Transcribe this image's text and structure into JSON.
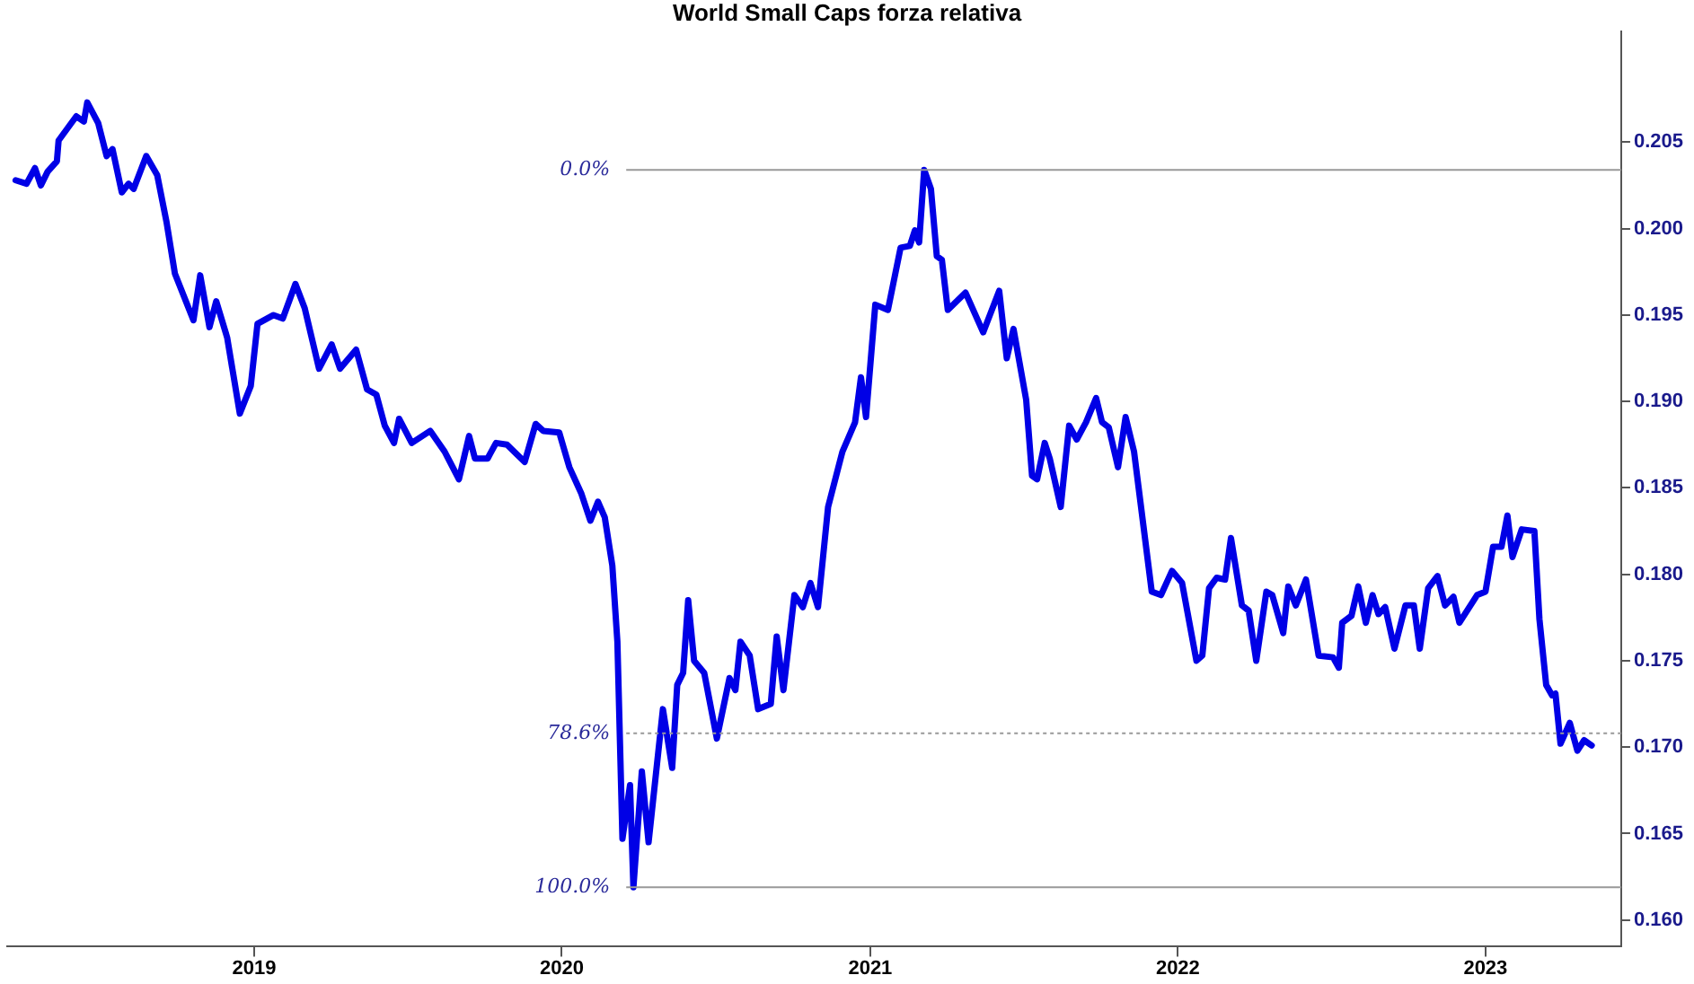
{
  "chart_data": {
    "type": "line",
    "title": "World Small Caps forza relativa",
    "x": [
      "2018-03-24",
      "2018-04-06",
      "2018-04-16",
      "2018-04-23",
      "2018-05-01",
      "2018-05-12",
      "2018-05-14",
      "2018-06-04",
      "2018-06-13",
      "2018-06-17",
      "2018-06-30",
      "2018-07-10",
      "2018-07-17",
      "2018-07-28",
      "2018-08-05",
      "2018-08-11",
      "2018-08-26",
      "2018-09-08",
      "2018-09-19",
      "2018-09-29",
      "2018-10-21",
      "2018-10-29",
      "2018-11-09",
      "2018-11-17",
      "2018-11-30",
      "2018-12-15",
      "2018-12-28",
      "2019-01-05",
      "2019-01-24",
      "2019-02-04",
      "2019-02-19",
      "2019-03-02",
      "2019-03-19",
      "2019-04-03",
      "2019-04-13",
      "2019-05-02",
      "2019-05-15",
      "2019-05-26",
      "2019-06-05",
      "2019-06-16",
      "2019-06-22",
      "2019-07-07",
      "2019-07-29",
      "2019-08-15",
      "2019-09-01",
      "2019-09-13",
      "2019-09-20",
      "2019-10-05",
      "2019-10-15",
      "2019-10-28",
      "2019-11-18",
      "2019-12-01",
      "2019-12-10",
      "2019-12-29",
      "2020-01-10",
      "2020-01-24",
      "2020-02-04",
      "2020-02-13",
      "2020-02-21",
      "2020-03-01",
      "2020-03-07",
      "2020-03-13",
      "2020-03-22",
      "2020-03-26",
      "2020-04-05",
      "2020-04-13",
      "2020-04-30",
      "2020-05-11",
      "2020-05-17",
      "2020-05-24",
      "2020-05-30",
      "2020-06-06",
      "2020-06-18",
      "2020-07-03",
      "2020-07-18",
      "2020-07-25",
      "2020-07-31",
      "2020-08-11",
      "2020-08-21",
      "2020-09-05",
      "2020-09-12",
      "2020-09-20",
      "2020-10-03",
      "2020-10-13",
      "2020-10-22",
      "2020-10-31",
      "2020-11-12",
      "2020-11-29",
      "2020-12-14",
      "2020-12-21",
      "2020-12-27",
      "2021-01-07",
      "2021-01-22",
      "2021-02-06",
      "2021-02-17",
      "2021-02-23",
      "2021-02-28",
      "2021-03-06",
      "2021-03-14",
      "2021-03-21",
      "2021-03-27",
      "2021-04-03",
      "2021-04-24",
      "2021-05-15",
      "2021-06-03",
      "2021-06-12",
      "2021-06-20",
      "2021-07-05",
      "2021-07-12",
      "2021-07-18",
      "2021-07-27",
      "2021-08-02",
      "2021-08-15",
      "2021-08-25",
      "2021-09-03",
      "2021-09-14",
      "2021-09-26",
      "2021-10-03",
      "2021-10-11",
      "2021-10-22",
      "2021-10-31",
      "2021-11-10",
      "2021-12-01",
      "2021-12-12",
      "2021-12-25",
      "2022-01-06",
      "2022-01-23",
      "2022-01-30",
      "2022-02-07",
      "2022-02-16",
      "2022-02-26",
      "2022-03-05",
      "2022-03-18",
      "2022-03-26",
      "2022-04-04",
      "2022-04-16",
      "2022-04-23",
      "2022-05-06",
      "2022-05-12",
      "2022-05-21",
      "2022-06-02",
      "2022-06-17",
      "2022-07-04",
      "2022-07-11",
      "2022-07-15",
      "2022-07-26",
      "2022-08-03",
      "2022-08-12",
      "2022-08-20",
      "2022-08-27",
      "2022-09-04",
      "2022-09-15",
      "2022-09-28",
      "2022-10-08",
      "2022-10-15",
      "2022-10-25",
      "2022-11-05",
      "2022-11-14",
      "2022-11-24",
      "2022-12-01",
      "2022-12-22",
      "2023-01-01",
      "2023-01-10",
      "2023-01-20",
      "2023-01-27",
      "2023-02-02",
      "2023-02-13",
      "2023-02-28",
      "2023-03-06",
      "2023-03-14",
      "2023-03-21",
      "2023-03-25",
      "2023-03-31",
      "2023-04-11",
      "2023-04-20",
      "2023-04-28",
      "2023-05-07"
    ],
    "series": [
      {
        "color": "#0000e6",
        "values": [
          0.2028,
          0.2026,
          0.2035,
          0.2025,
          0.2033,
          0.2039,
          0.2051,
          0.2065,
          0.2062,
          0.2073,
          0.2061,
          0.2042,
          0.2046,
          0.2021,
          0.2026,
          0.2023,
          0.2042,
          0.2031,
          0.2004,
          0.1974,
          0.1947,
          0.1973,
          0.1943,
          0.1958,
          0.1937,
          0.1893,
          0.1909,
          0.1945,
          0.195,
          0.1948,
          0.1968,
          0.1954,
          0.1919,
          0.1933,
          0.1919,
          0.193,
          0.1907,
          0.1904,
          0.1886,
          0.1876,
          0.189,
          0.1876,
          0.1883,
          0.1871,
          0.1855,
          0.188,
          0.1867,
          0.1867,
          0.1876,
          0.1875,
          0.1865,
          0.1887,
          0.1883,
          0.1882,
          0.1862,
          0.1847,
          0.1831,
          0.1842,
          0.1833,
          0.1805,
          0.1761,
          0.1647,
          0.1678,
          0.1619,
          0.1686,
          0.1645,
          0.1722,
          0.1688,
          0.1736,
          0.1743,
          0.1785,
          0.175,
          0.1743,
          0.1705,
          0.174,
          0.1733,
          0.1761,
          0.1753,
          0.1722,
          0.1725,
          0.1764,
          0.1733,
          0.1788,
          0.1781,
          0.1795,
          0.1781,
          0.1839,
          0.1871,
          0.1888,
          0.1914,
          0.1891,
          0.1956,
          0.1953,
          0.1989,
          0.199,
          0.1999,
          0.1992,
          0.2034,
          0.2023,
          0.1984,
          0.1982,
          0.1953,
          0.1963,
          0.194,
          0.1964,
          0.1925,
          0.1942,
          0.1901,
          0.1857,
          0.1855,
          0.1876,
          0.1867,
          0.1839,
          0.1886,
          0.1878,
          0.1888,
          0.1902,
          0.1888,
          0.1885,
          0.1862,
          0.1891,
          0.1871,
          0.179,
          0.1788,
          0.1802,
          0.1795,
          0.175,
          0.1753,
          0.1792,
          0.1798,
          0.1797,
          0.1821,
          0.1782,
          0.1779,
          0.175,
          0.179,
          0.1788,
          0.1766,
          0.1793,
          0.1782,
          0.1797,
          0.1753,
          0.1752,
          0.1746,
          0.1772,
          0.1776,
          0.1793,
          0.1772,
          0.1788,
          0.1777,
          0.1781,
          0.1757,
          0.1782,
          0.1782,
          0.1757,
          0.1792,
          0.1799,
          0.1782,
          0.1787,
          0.1772,
          0.1788,
          0.179,
          0.1816,
          0.1816,
          0.1834,
          0.181,
          0.1826,
          0.1825,
          0.1774,
          0.1736,
          0.173,
          0.1731,
          0.1702,
          0.1714,
          0.1698,
          0.1704,
          0.1701
        ]
      }
    ],
    "xlim": [
      "2018-03-14",
      "2023-06-11"
    ],
    "xticks": [
      "2019",
      "2020",
      "2021",
      "2022",
      "2023"
    ],
    "ylim": [
      0.1585,
      0.2114
    ],
    "yticks": [
      {
        "value": 0.16,
        "label": "0.160"
      },
      {
        "value": 0.165,
        "label": "0.165"
      },
      {
        "value": 0.17,
        "label": "0.170"
      },
      {
        "value": 0.175,
        "label": "0.175"
      },
      {
        "value": 0.18,
        "label": "0.180"
      },
      {
        "value": 0.185,
        "label": "0.185"
      },
      {
        "value": 0.19,
        "label": "0.190"
      },
      {
        "value": 0.195,
        "label": "0.195"
      },
      {
        "value": 0.2,
        "label": "0.200"
      },
      {
        "value": 0.205,
        "label": "0.205"
      }
    ],
    "ref_lines": [
      {
        "axis": "y",
        "value": 0.2034,
        "color": "#999999",
        "line_style": "solid"
      },
      {
        "axis": "y",
        "value": 0.1708,
        "color": "#999999",
        "line_style": "dotted"
      },
      {
        "axis": "y",
        "value": 0.1619,
        "color": "#999999",
        "line_style": "solid"
      }
    ],
    "annotations": [
      {
        "text": "0.0%",
        "x": "2020-03-26",
        "y": 0.2034
      },
      {
        "text": "78.6%",
        "x": "2020-03-26",
        "y": 0.1708
      },
      {
        "text": "100.0%",
        "x": "2020-03-26",
        "y": 0.1619
      }
    ],
    "grid": false,
    "legend": false,
    "marker": "none",
    "line_style": "solid"
  }
}
